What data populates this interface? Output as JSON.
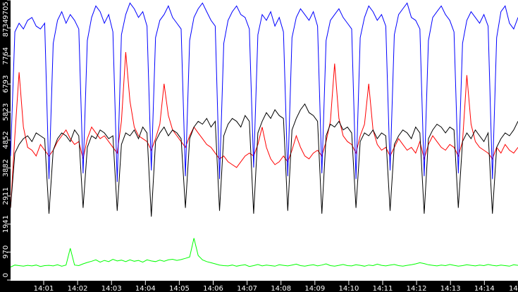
{
  "chart_data": {
    "type": "line",
    "title": "",
    "xlabel": "",
    "ylabel": "",
    "x_range": [
      "14:00:00",
      "14:15:00"
    ],
    "x_ticks": [
      "14:01",
      "14:02",
      "14:03",
      "14:04",
      "14:05",
      "14:06",
      "14:07",
      "14:08",
      "14:09",
      "14:10",
      "14:11",
      "14:12",
      "14:13",
      "14:14",
      "14"
    ],
    "y_ticks": [
      "0",
      "970",
      "1941",
      "2911",
      "3882",
      "4852",
      "5823",
      "6793",
      "7764",
      "8734",
      "9705"
    ],
    "ylim": [
      0,
      9705
    ],
    "grid": false,
    "background": "#ffffff",
    "series": [
      {
        "color": "#0000ff",
        "values": [
          4300,
          8600,
          8900,
          8700,
          9000,
          9100,
          8800,
          8700,
          8900,
          3500,
          8200,
          9000,
          9300,
          8900,
          9200,
          9000,
          8700,
          3700,
          8300,
          9100,
          9500,
          9300,
          8900,
          9200,
          8600,
          3400,
          8500,
          9200,
          9600,
          9400,
          9100,
          9300,
          8800,
          3800,
          8400,
          9000,
          9200,
          9500,
          9100,
          8900,
          8700,
          3600,
          8300,
          9100,
          9400,
          9600,
          9300,
          9000,
          8800,
          3500,
          8200,
          9000,
          9300,
          9500,
          9200,
          9100,
          8700,
          3900,
          8500,
          9200,
          9000,
          9300,
          8800,
          9100,
          8600,
          3600,
          8400,
          9100,
          9400,
          9200,
          9000,
          9300,
          8800,
          3700,
          8300,
          9000,
          9200,
          9400,
          9100,
          8900,
          8700,
          3500,
          8400,
          9100,
          9500,
          9300,
          9000,
          9200,
          8800,
          3800,
          8500,
          9200,
          9400,
          9600,
          9100,
          9000,
          8700,
          3600,
          8300,
          9100,
          9300,
          9500,
          9200,
          9000,
          8600,
          3700,
          8200,
          9000,
          9300,
          9100,
          8900,
          9200,
          8800,
          3500,
          8400,
          9300,
          9500,
          8900,
          8700,
          9100
        ]
      },
      {
        "color": "#ff0000",
        "values": [
          2500,
          5000,
          7200,
          5300,
          4600,
          4500,
          4300,
          4700,
          4500,
          4300,
          4500,
          4800,
          5000,
          5200,
          4900,
          4700,
          4800,
          4200,
          4900,
          5300,
          5100,
          4900,
          5000,
          4800,
          4600,
          4400,
          5500,
          7900,
          6200,
          5300,
          5000,
          4900,
          4800,
          4500,
          4900,
          5400,
          6800,
          5700,
          5200,
          5000,
          4800,
          4600,
          5000,
          5300,
          5100,
          4900,
          4700,
          4600,
          4400,
          4200,
          4300,
          4100,
          4000,
          3900,
          4100,
          4300,
          4400,
          4300,
          4700,
          5300,
          4600,
          4200,
          4000,
          4100,
          4300,
          4100,
          4500,
          5000,
          4600,
          4300,
          4200,
          4400,
          4500,
          4300,
          4800,
          5500,
          7500,
          5600,
          5000,
          4800,
          4700,
          4400,
          5000,
          5400,
          6800,
          5200,
          4700,
          4500,
          4600,
          4300,
          4600,
          4900,
          4700,
          4500,
          4600,
          4400,
          4800,
          4200,
          4700,
          5000,
          4800,
          4600,
          4500,
          4700,
          4600,
          4300,
          4800,
          7100,
          5400,
          4800,
          4600,
          4500,
          4400,
          4200,
          4600,
          4400,
          4700,
          4500,
          4400,
          4600
        ]
      },
      {
        "color": "#000000",
        "values": [
          2500,
          4400,
          4700,
          4900,
          5000,
          4800,
          5100,
          5000,
          4900,
          2300,
          4500,
          4900,
          5100,
          5000,
          4800,
          5200,
          5000,
          2500,
          4600,
          5000,
          4900,
          5200,
          5100,
          4900,
          5000,
          2400,
          4700,
          5100,
          5000,
          5200,
          4900,
          5300,
          5100,
          2200,
          4800,
          5100,
          5300,
          5000,
          5200,
          5100,
          4900,
          2500,
          4900,
          5300,
          5500,
          5400,
          5600,
          5300,
          5500,
          2400,
          5000,
          5400,
          5600,
          5500,
          5300,
          5700,
          5500,
          2300,
          5100,
          5500,
          5800,
          5600,
          5900,
          5700,
          5600,
          2400,
          5200,
          5600,
          5900,
          6100,
          5800,
          5700,
          5500,
          2300,
          5000,
          5400,
          5300,
          5500,
          5200,
          5300,
          5100,
          2500,
          4800,
          5100,
          5000,
          5200,
          4900,
          5100,
          5000,
          2400,
          4700,
          5000,
          5200,
          5100,
          4900,
          5300,
          5100,
          2300,
          4900,
          5200,
          5400,
          5300,
          5100,
          5300,
          5200,
          2500,
          4800,
          5100,
          4900,
          5200,
          5000,
          4800,
          5100,
          2300,
          4600,
          4900,
          5100,
          5000,
          5200,
          5500
        ]
      },
      {
        "color": "#00ff00",
        "values": [
          450,
          520,
          500,
          480,
          510,
          490,
          520,
          470,
          500,
          510,
          490,
          530,
          480,
          520,
          1100,
          520,
          500,
          560,
          610,
          650,
          700,
          620,
          680,
          640,
          720,
          660,
          690,
          640,
          700,
          650,
          680,
          620,
          700,
          660,
          640,
          690,
          650,
          700,
          720,
          680,
          710,
          750,
          800,
          1450,
          850,
          700,
          640,
          600,
          560,
          520,
          500,
          490,
          520,
          480,
          510,
          530,
          470,
          500,
          540,
          490,
          520,
          500,
          480,
          530,
          510,
          490,
          520,
          550,
          500,
          480,
          510,
          530,
          490,
          520,
          560,
          500,
          480,
          510,
          540,
          500,
          490,
          530,
          510,
          480,
          520,
          500,
          550,
          510,
          490,
          520,
          540,
          500,
          480,
          510,
          530,
          560,
          600,
          570,
          530,
          510,
          490,
          520,
          500,
          540,
          510,
          480,
          500,
          530,
          510,
          490,
          520,
          500,
          540,
          510,
          490,
          520,
          500,
          480,
          530,
          510
        ]
      }
    ]
  }
}
